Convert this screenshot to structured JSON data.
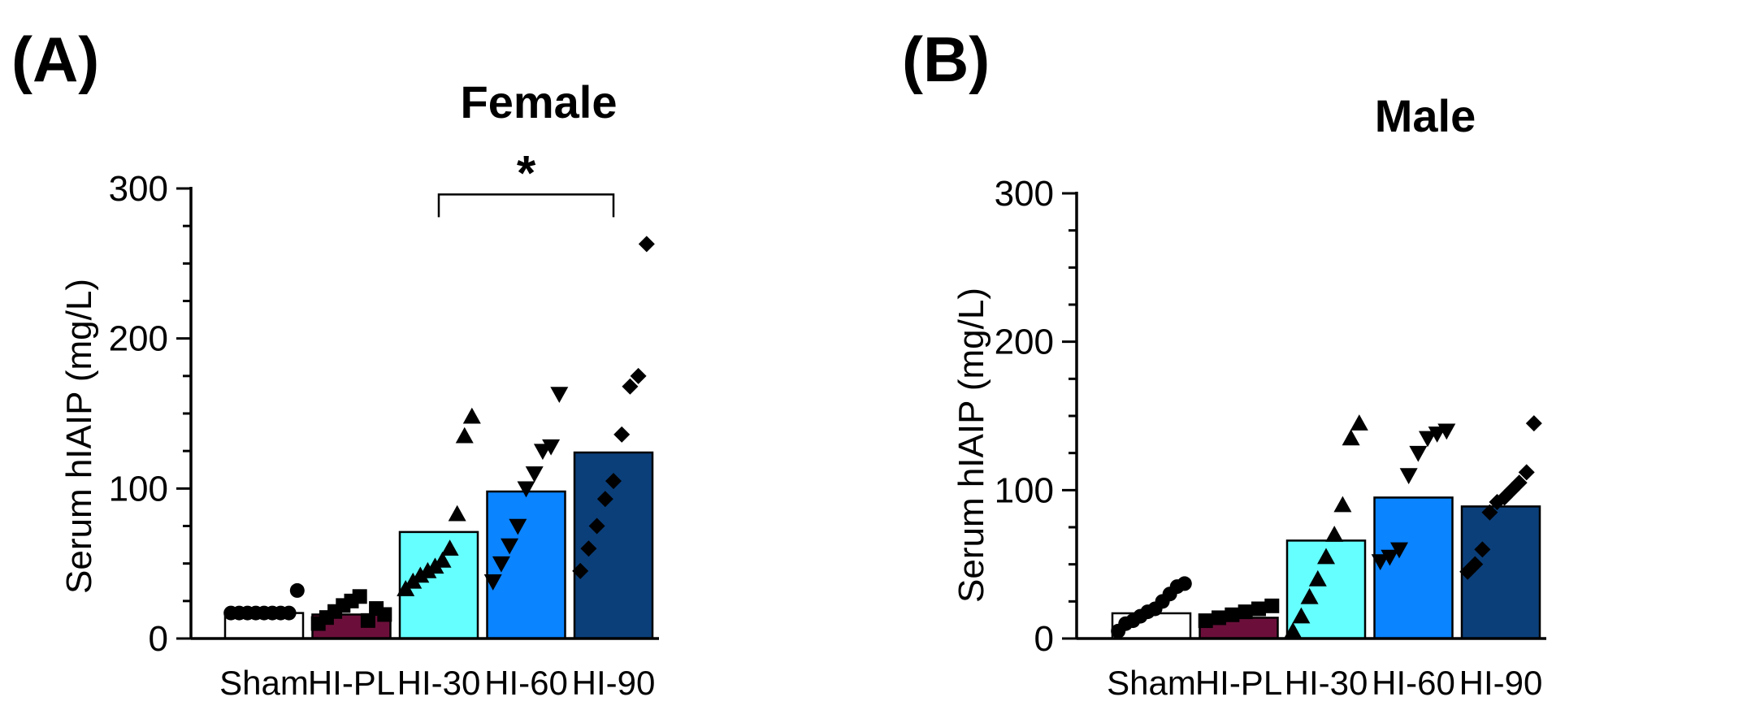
{
  "chart_data": [
    {
      "type": "bar",
      "panel": "(A)",
      "title": "Female",
      "ylabel": "Serum hIAIP (mg/L)",
      "xlabel": "",
      "ylim": [
        0,
        300
      ],
      "yticks": [
        0,
        100,
        200,
        300
      ],
      "categories": [
        "Sham",
        "HI-PL",
        "HI-30",
        "HI-60",
        "HI-90"
      ],
      "values": [
        17,
        16,
        71,
        98,
        124
      ],
      "bar_colors": [
        "#ffffff",
        "#6b0f3a",
        "#66ffff",
        "#0a84ff",
        "#0b3f7a"
      ],
      "markers": [
        "circle",
        "square",
        "triangle-up",
        "triangle-down",
        "diamond"
      ],
      "points": [
        [
          17,
          17,
          17,
          17,
          17,
          17,
          17,
          17,
          32
        ],
        [
          10,
          14,
          18,
          22,
          25,
          28,
          12,
          20,
          16
        ],
        [
          33,
          38,
          42,
          45,
          48,
          52,
          60,
          83,
          135,
          148
        ],
        [
          38,
          50,
          62,
          75,
          100,
          110,
          125,
          128,
          163
        ],
        [
          45,
          60,
          75,
          93,
          105,
          136,
          168,
          175,
          263
        ]
      ],
      "annotations": [
        {
          "text": "*",
          "from": "HI-30",
          "to": "HI-90",
          "y": 296
        }
      ]
    },
    {
      "type": "bar",
      "panel": "(B)",
      "title": "Male",
      "ylabel": "Serum hIAIP (mg/L)",
      "xlabel": "",
      "ylim": [
        0,
        300
      ],
      "yticks": [
        0,
        100,
        200,
        300
      ],
      "categories": [
        "Sham",
        "HI-PL",
        "HI-30",
        "HI-60",
        "HI-90"
      ],
      "values": [
        17,
        14,
        66,
        95,
        89
      ],
      "bar_colors": [
        "#ffffff",
        "#6b0f3a",
        "#66ffff",
        "#0a84ff",
        "#0b3f7a"
      ],
      "markers": [
        "circle",
        "square",
        "triangle-up",
        "triangle-down",
        "diamond"
      ],
      "points": [
        [
          5,
          10,
          12,
          15,
          18,
          20,
          25,
          30,
          35,
          37
        ],
        [
          12,
          14,
          16,
          18,
          20,
          22
        ],
        [
          5,
          15,
          28,
          40,
          55,
          70,
          90,
          135,
          145
        ],
        [
          52,
          55,
          60,
          110,
          125,
          135,
          138,
          140
        ],
        [
          45,
          50,
          60,
          85,
          92,
          95,
          100,
          105,
          112,
          145
        ]
      ],
      "annotations": []
    }
  ]
}
